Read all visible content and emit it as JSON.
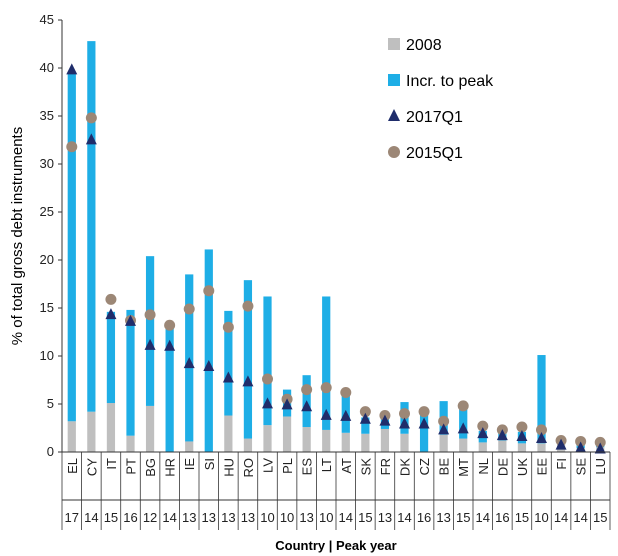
{
  "chart_data": {
    "type": "bar",
    "title": "",
    "xlabel": "Country | Peak year",
    "ylabel": "% of total gross debt instruments",
    "ylim": [
      0,
      45
    ],
    "yticks": [
      0,
      5,
      10,
      15,
      20,
      25,
      30,
      35,
      40,
      45
    ],
    "grid": false,
    "legend_position": "top-right",
    "categories": [
      "EL",
      "CY",
      "IT",
      "PT",
      "BG",
      "HR",
      "IE",
      "SI",
      "HU",
      "RO",
      "LV",
      "PL",
      "ES",
      "LT",
      "AT",
      "SK",
      "FR",
      "DK",
      "CZ",
      "BE",
      "MT",
      "NL",
      "DE",
      "UK",
      "EE",
      "FI",
      "SE",
      "LU"
    ],
    "peak_years": [
      "17",
      "14",
      "15",
      "16",
      "12",
      "14",
      "13",
      "13",
      "13",
      "13",
      "10",
      "10",
      "13",
      "10",
      "14",
      "15",
      "13",
      "14",
      "16",
      "13",
      "15",
      "14",
      "16",
      "15",
      "10",
      "14",
      "14",
      "15"
    ],
    "colors": {
      "2008": "#bfbfbf",
      "Incr. to peak": "#1eaee6",
      "2017Q1": "#1f2d6b",
      "2015Q1": "#9c8776"
    },
    "series": [
      {
        "name": "2008",
        "kind": "stacked-bar",
        "values": [
          3.2,
          4.2,
          5.1,
          1.7,
          4.8,
          0.0,
          1.1,
          0.0,
          3.8,
          1.4,
          2.8,
          3.7,
          2.6,
          2.3,
          2.0,
          1.9,
          2.4,
          1.9,
          0.0,
          1.8,
          1.4,
          1.0,
          1.2,
          0.9,
          0.9,
          0.8,
          0.4,
          0.5
        ]
      },
      {
        "name": "Incr. to peak",
        "kind": "stacked-bar",
        "values": [
          36.3,
          38.6,
          9.5,
          13.1,
          15.6,
          13.0,
          17.4,
          21.1,
          10.9,
          16.5,
          13.4,
          2.8,
          5.4,
          13.9,
          4.4,
          1.7,
          1.8,
          3.3,
          4.6,
          3.5,
          3.6,
          1.2,
          0.9,
          1.2,
          9.2,
          0.6,
          0.5,
          0.5
        ]
      },
      {
        "name": "2017Q1",
        "kind": "marker",
        "marker": "triangle",
        "values": [
          39.8,
          32.5,
          14.3,
          13.6,
          11.1,
          11.0,
          9.2,
          8.9,
          7.7,
          7.3,
          5.0,
          4.9,
          4.7,
          3.8,
          3.7,
          3.4,
          3.2,
          2.9,
          2.9,
          2.3,
          2.4,
          1.9,
          1.7,
          1.6,
          1.4,
          0.7,
          0.4,
          0.3
        ]
      },
      {
        "name": "2015Q1",
        "kind": "marker",
        "marker": "circle",
        "values": [
          31.8,
          34.8,
          15.9,
          13.7,
          14.3,
          13.2,
          14.9,
          16.8,
          13.0,
          15.2,
          7.6,
          5.5,
          6.5,
          6.7,
          6.2,
          4.2,
          3.8,
          4.0,
          4.2,
          3.2,
          4.8,
          2.7,
          2.3,
          2.6,
          2.3,
          1.2,
          1.1,
          1.0
        ]
      }
    ]
  }
}
